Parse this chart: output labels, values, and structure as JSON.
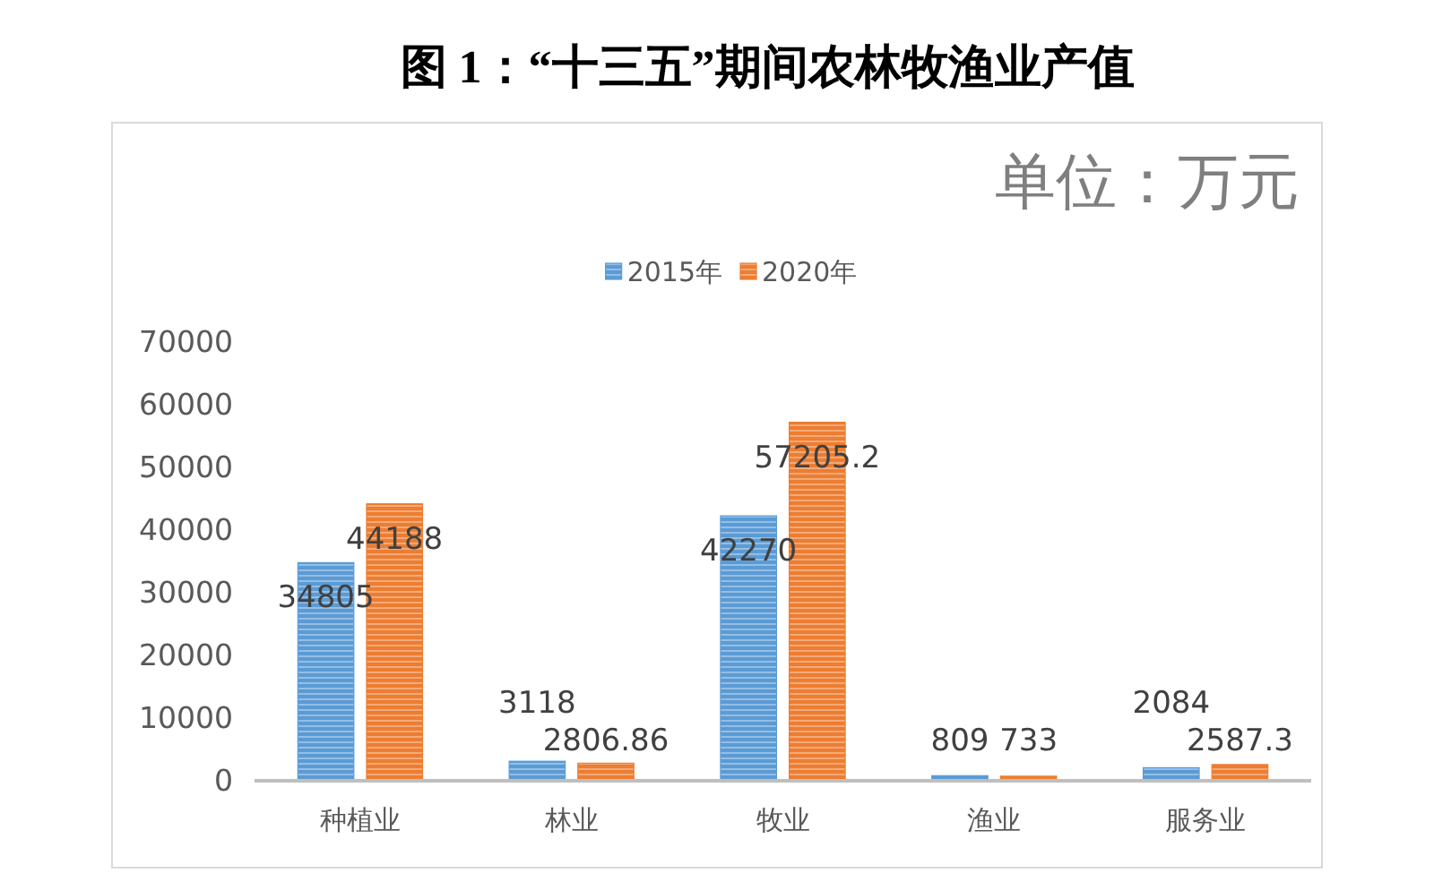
{
  "chart_data": {
    "type": "bar",
    "title": "图 1：“十三五”期间农林牧渔业产值",
    "annotations": [
      "单位：万元"
    ],
    "categories": [
      "种植业",
      "林业",
      "牧业",
      "渔业",
      "服务业"
    ],
    "series": [
      {
        "name": "2015年",
        "color": "#5b9bd5",
        "values": [
          34805,
          3118,
          42270,
          809,
          2084
        ]
      },
      {
        "name": "2020年",
        "color": "#ed7d31",
        "values": [
          44188,
          2806.86,
          57205.2,
          733,
          2587.3
        ]
      }
    ],
    "ylim": [
      0,
      70000
    ],
    "yticks": [
      0,
      10000,
      20000,
      30000,
      40000,
      50000,
      60000,
      70000
    ],
    "data_labels": true,
    "legend": "top",
    "grid": false
  }
}
